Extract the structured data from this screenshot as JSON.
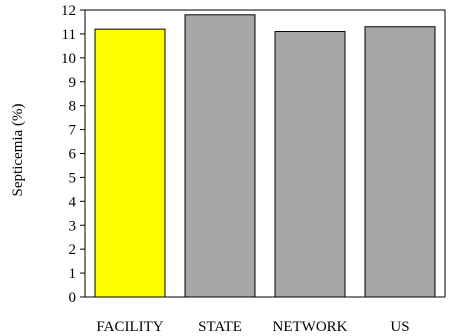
{
  "chart_data": {
    "type": "bar",
    "categories": [
      "FACILITY",
      "STATE",
      "NETWORK",
      "US"
    ],
    "values": [
      11.2,
      11.8,
      11.1,
      11.3
    ],
    "bar_colors": [
      "#ffff00",
      "#a6a6a6",
      "#a6a6a6",
      "#a6a6a6"
    ],
    "ylabel": "Septicemia (%)",
    "xlabel": "",
    "ylim": [
      0,
      12
    ],
    "yticks": [
      0,
      1,
      2,
      3,
      4,
      5,
      6,
      7,
      8,
      9,
      10,
      11,
      12
    ],
    "grid": false,
    "legend": "none"
  }
}
